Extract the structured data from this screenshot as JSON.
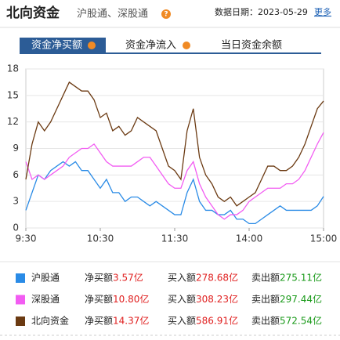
{
  "header": {
    "title": "北向资金",
    "subtitle": "沪股通、深股通",
    "help": "?",
    "date": "数据日期：2023-05-29",
    "more": "更多"
  },
  "tabs": [
    "资金净买额",
    "资金净流入",
    "当日资金余额"
  ],
  "chart_data": {
    "type": "line",
    "x": [
      0,
      5,
      10,
      15,
      20,
      25,
      30,
      35,
      40,
      45,
      50,
      55,
      60,
      65,
      70,
      75,
      80,
      85,
      90,
      95,
      100,
      105,
      110,
      115,
      120,
      125,
      130,
      135,
      140,
      145,
      150,
      155,
      160,
      165,
      170,
      175,
      180,
      185,
      190,
      195,
      200,
      205,
      210,
      215,
      220,
      225,
      230,
      235,
      240
    ],
    "xlim": [
      0,
      240
    ],
    "xticks": [
      {
        "value": 0,
        "label": "9:30"
      },
      {
        "value": 60,
        "label": "10:30"
      },
      {
        "value": 120,
        "label": "11:30"
      },
      {
        "value": 180,
        "label": "14:00"
      },
      {
        "value": 240,
        "label": "15:00"
      }
    ],
    "ylim": [
      0,
      18
    ],
    "yticks": [
      0,
      3,
      6,
      9,
      12,
      15,
      18
    ],
    "grid": true,
    "series": [
      {
        "name": "沪股通",
        "color": "#2a8be6",
        "values": [
          2,
          4,
          6,
          5.5,
          6.5,
          7,
          7.5,
          7,
          7.5,
          6.5,
          6.5,
          5.5,
          4.5,
          5.5,
          4,
          4,
          3,
          3.5,
          3.5,
          3,
          2.5,
          3,
          2.5,
          2,
          1.5,
          1.5,
          4,
          5.5,
          3,
          2,
          2,
          1.5,
          1.5,
          2,
          1,
          1,
          0.5,
          0.5,
          1,
          1.5,
          2,
          2.5,
          2,
          2,
          2,
          2,
          2,
          2.5,
          3.57
        ]
      },
      {
        "name": "深股通",
        "color": "#f25cf2",
        "values": [
          7.5,
          5.5,
          6,
          5.5,
          6,
          6.5,
          7,
          8,
          8.5,
          9,
          9,
          9.5,
          8.5,
          7.5,
          7,
          7,
          7,
          7,
          7.5,
          8,
          8,
          7,
          6,
          5,
          4.5,
          4.5,
          6.5,
          7.5,
          5,
          3.5,
          2.5,
          1.5,
          1,
          1.5,
          1.5,
          2,
          3,
          3.5,
          4,
          4.5,
          4.5,
          4.5,
          5,
          5,
          5.5,
          6.5,
          8,
          9.5,
          10.8
        ]
      },
      {
        "name": "北向资金",
        "color": "#6b3a12",
        "values": [
          5.5,
          9.5,
          12,
          11,
          12,
          13.5,
          15,
          16.5,
          16,
          15.5,
          15.5,
          14.5,
          12.5,
          13,
          11,
          11.5,
          10.5,
          11,
          12.5,
          12,
          11.5,
          11,
          9,
          7,
          6.5,
          5.5,
          11,
          13.5,
          8,
          6,
          5,
          3.5,
          3,
          3.5,
          2.5,
          3,
          3.5,
          4,
          5.5,
          7,
          7,
          6.5,
          6.5,
          7,
          8,
          9.5,
          11.5,
          13.5,
          14.37
        ]
      }
    ]
  },
  "summary": [
    {
      "net_label": "净买额",
      "net": "3.57亿",
      "buy_label": "买入额",
      "buy": "278.68亿",
      "sell_label": "卖出额",
      "sell": "275.11亿"
    },
    {
      "net_label": "净买额",
      "net": "10.80亿",
      "buy_label": "买入额",
      "buy": "308.23亿",
      "sell_label": "卖出额",
      "sell": "297.44亿"
    },
    {
      "net_label": "净买额",
      "net": "14.37亿",
      "buy_label": "买入额",
      "buy": "586.91亿",
      "sell_label": "卖出额",
      "sell": "572.54亿"
    }
  ]
}
